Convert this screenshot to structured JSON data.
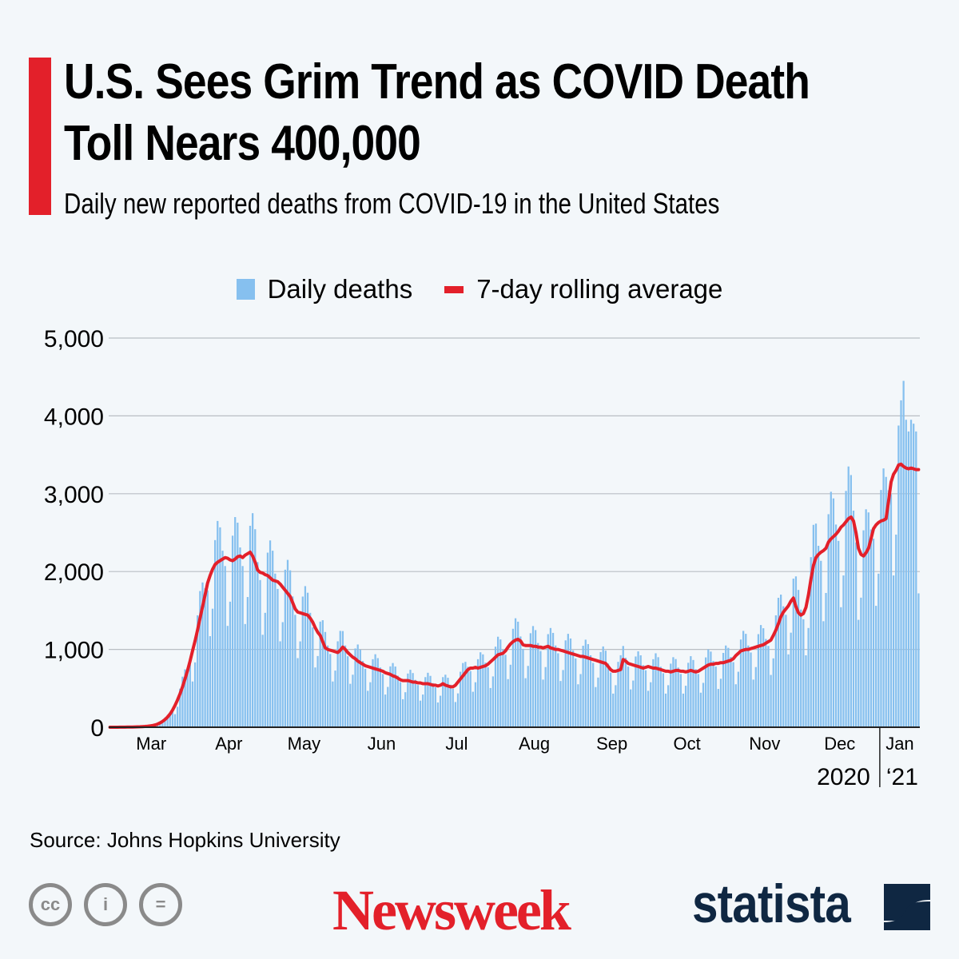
{
  "header": {
    "title_line1": "U.S. Sees Grim Trend as COVID Death",
    "title_line2": "Toll Nears 400,000",
    "subtitle": "Daily new reported deaths from COVID-19 in the United States",
    "accent_color": "#e3202a"
  },
  "legend": {
    "items": [
      {
        "label": "Daily deaths",
        "color": "#86c0ef",
        "shape": "square"
      },
      {
        "label": "7-day rolling average",
        "color": "#e3202a",
        "shape": "line"
      }
    ]
  },
  "footer": {
    "source": "Source: Johns Hopkins University",
    "license_icons": [
      "cc-icon",
      "attribution-icon",
      "no-derivatives-icon"
    ],
    "license_glyphs": [
      "cc",
      "i",
      "="
    ],
    "newsweek_logo": "Newsweek",
    "newsweek_color": "#e3202a",
    "statista_logo": "statista",
    "statista_color": "#0f2742"
  },
  "chart_data": {
    "type": "bar",
    "title": "U.S. Sees Grim Trend as COVID Death Toll Nears 400,000",
    "subtitle": "Daily new reported deaths from COVID-19 in the United States",
    "xlabel": "",
    "ylabel": "",
    "ylim": [
      0,
      5000
    ],
    "yticks": [
      0,
      1000,
      2000,
      3000,
      4000,
      5000
    ],
    "ytick_labels": [
      "0",
      "1,000",
      "2,000",
      "3,000",
      "4,000",
      "5,000"
    ],
    "grid": true,
    "legend_position": "top-center",
    "x_start_date": "2020-02-28",
    "x_end_date": "2021-01-15",
    "month_labels": [
      {
        "label": "Mar",
        "day": 17
      },
      {
        "label": "Apr",
        "day": 48
      },
      {
        "label": "May",
        "day": 78
      },
      {
        "label": "Jun",
        "day": 109
      },
      {
        "label": "Jul",
        "day": 139
      },
      {
        "label": "Aug",
        "day": 170
      },
      {
        "label": "Sep",
        "day": 201
      },
      {
        "label": "Oct",
        "day": 231
      },
      {
        "label": "Nov",
        "day": 262
      },
      {
        "label": "Dec",
        "day": 292
      },
      {
        "label": "Jan",
        "day": 316
      }
    ],
    "year_labels": [
      {
        "label": "2020",
        "side": "left-of-divider"
      },
      {
        "label": "‘21",
        "side": "right-of-divider"
      }
    ],
    "year_divider_day": 308,
    "series": [
      {
        "name": "Daily deaths",
        "type": "bar",
        "color": "#86c0ef",
        "values": [
          0,
          0,
          0,
          0,
          1,
          1,
          1,
          2,
          3,
          4,
          4,
          5,
          4,
          6,
          12,
          16,
          20,
          23,
          29,
          24,
          41,
          86,
          125,
          156,
          179,
          209,
          168,
          263,
          495,
          650,
          744,
          767,
          808,
          588,
          833,
          1438,
          1750,
          1860,
          1785,
          1758,
          1170,
          1523,
          2404,
          2650,
          2568,
          2268,
          2071,
          1302,
          1613,
          2461,
          2700,
          2628,
          2310,
          2071,
          1326,
          1673,
          2588,
          2750,
          2544,
          2121,
          1891,
          1188,
          1470,
          2243,
          2400,
          2268,
          1974,
          1777,
          1104,
          1350,
          2024,
          2150,
          2016,
          1680,
          1444,
          888,
          1103,
          1679,
          1813,
          1728,
          1470,
          1283,
          768,
          915,
          1357,
          1375,
          1224,
          1050,
          941,
          588,
          728,
          1104,
          1238,
          1236,
          1050,
          912,
          558,
          675,
          1012,
          1063,
          996,
          851,
          751,
          468,
          578,
          874,
          938,
          888,
          767,
          684,
          420,
          518,
          782,
          825,
          780,
          662,
          580,
          360,
          450,
          690,
          738,
          696,
          609,
          542,
          342,
          420,
          644,
          700,
          660,
          567,
          513,
          318,
          405,
          644,
          675,
          636,
          546,
          494,
          324,
          435,
          713,
          825,
          840,
          777,
          722,
          456,
          578,
          874,
          963,
          936,
          830,
          770,
          504,
          653,
          1035,
          1163,
          1128,
          998,
          931,
          618,
          803,
          1265,
          1400,
          1356,
          1166,
          1007,
          630,
          788,
          1208,
          1300,
          1248,
          1082,
          979,
          612,
          773,
          1196,
          1275,
          1212,
          1050,
          950,
          594,
          735,
          1116,
          1200,
          1140,
          987,
          884,
          552,
          683,
          1047,
          1125,
          1068,
          924,
          827,
          516,
          638,
          966,
          1038,
          984,
          819,
          703,
          432,
          540,
          840,
          925,
          1044,
          893,
          779,
          486,
          600,
          909,
          975,
          924,
          798,
          732,
          468,
          578,
          874,
          950,
          900,
          777,
          694,
          432,
          540,
          817,
          900,
          876,
          767,
          684,
          432,
          533,
          828,
          913,
          864,
          746,
          684,
          444,
          570,
          897,
          1000,
          972,
          851,
          779,
          492,
          623,
          955,
          1050,
          1020,
          903,
          836,
          552,
          713,
          1127,
          1238,
          1200,
          1050,
          960,
          612,
          773,
          1196,
          1313,
          1272,
          1134,
          1045,
          672,
          885,
          1438,
          1663,
          1704,
          1554,
          1444,
          936,
          1215,
          1909,
          1938,
          1764,
          1512,
          1387,
          924,
          1275,
          2185,
          2600,
          2616,
          2331,
          2138,
          1362,
          1725,
          2737,
          3025,
          2940,
          2604,
          2394,
          1542,
          1950,
          3036,
          3350,
          3240,
          2783,
          2375,
          1380,
          1665,
          2530,
          2800,
          2760,
          2541,
          2423,
          1560,
          1973,
          3048,
          3325,
          3216,
          3045,
          2993,
          1950,
          2475,
          3876,
          4200,
          4450,
          3950,
          3800,
          3950,
          3900,
          3800,
          1720
        ]
      },
      {
        "name": "7-day rolling average",
        "type": "line",
        "color": "#e3202a",
        "values": [
          0,
          0,
          0,
          0,
          1,
          1,
          1,
          2,
          2,
          3,
          4,
          5,
          6,
          8,
          10,
          13,
          17,
          22,
          30,
          40,
          55,
          75,
          100,
          130,
          170,
          220,
          280,
          350,
          430,
          520,
          620,
          730,
          850,
          980,
          1110,
          1250,
          1400,
          1550,
          1700,
          1850,
          1950,
          2030,
          2090,
          2120,
          2140,
          2160,
          2180,
          2170,
          2150,
          2140,
          2160,
          2190,
          2200,
          2180,
          2210,
          2230,
          2250,
          2200,
          2120,
          2020,
          1990,
          1980,
          1960,
          1950,
          1920,
          1890,
          1880,
          1870,
          1840,
          1800,
          1760,
          1720,
          1680,
          1600,
          1520,
          1480,
          1470,
          1460,
          1450,
          1440,
          1400,
          1350,
          1280,
          1220,
          1180,
          1100,
          1020,
          1000,
          990,
          980,
          970,
          960,
          990,
          1030,
          1000,
          960,
          930,
          900,
          880,
          850,
          830,
          810,
          790,
          780,
          770,
          760,
          750,
          740,
          730,
          720,
          700,
          690,
          680,
          660,
          650,
          630,
          610,
          600,
          600,
          600,
          590,
          580,
          580,
          570,
          570,
          560,
          560,
          560,
          550,
          540,
          540,
          530,
          540,
          560,
          540,
          530,
          520,
          520,
          540,
          580,
          620,
          660,
          700,
          740,
          760,
          760,
          770,
          760,
          770,
          780,
          790,
          810,
          840,
          870,
          900,
          930,
          940,
          950,
          980,
          1030,
          1070,
          1100,
          1120,
          1130,
          1110,
          1060,
          1050,
          1050,
          1050,
          1040,
          1040,
          1030,
          1030,
          1020,
          1030,
          1040,
          1020,
          1010,
          1000,
          1000,
          990,
          980,
          970,
          960,
          950,
          940,
          930,
          920,
          910,
          910,
          900,
          890,
          880,
          870,
          860,
          850,
          840,
          830,
          820,
          780,
          740,
          720,
          720,
          730,
          740,
          870,
          850,
          820,
          810,
          800,
          790,
          780,
          770,
          760,
          770,
          780,
          770,
          760,
          760,
          750,
          740,
          730,
          720,
          720,
          710,
          720,
          730,
          730,
          720,
          720,
          710,
          720,
          730,
          720,
          710,
          720,
          740,
          760,
          780,
          800,
          810,
          810,
          820,
          820,
          830,
          830,
          840,
          850,
          860,
          880,
          920,
          950,
          980,
          990,
          1000,
          1000,
          1010,
          1020,
          1030,
          1040,
          1050,
          1060,
          1080,
          1100,
          1120,
          1180,
          1250,
          1330,
          1420,
          1480,
          1520,
          1560,
          1620,
          1660,
          1550,
          1470,
          1440,
          1460,
          1540,
          1700,
          1900,
          2080,
          2180,
          2220,
          2250,
          2270,
          2300,
          2380,
          2420,
          2450,
          2480,
          2520,
          2570,
          2600,
          2640,
          2680,
          2700,
          2650,
          2500,
          2300,
          2220,
          2200,
          2240,
          2300,
          2420,
          2550,
          2600,
          2630,
          2650,
          2660,
          2680,
          2900,
          3150,
          3250,
          3300,
          3370,
          3380,
          3350,
          3330,
          3320,
          3330,
          3320,
          3310,
          3310
        ]
      }
    ]
  }
}
